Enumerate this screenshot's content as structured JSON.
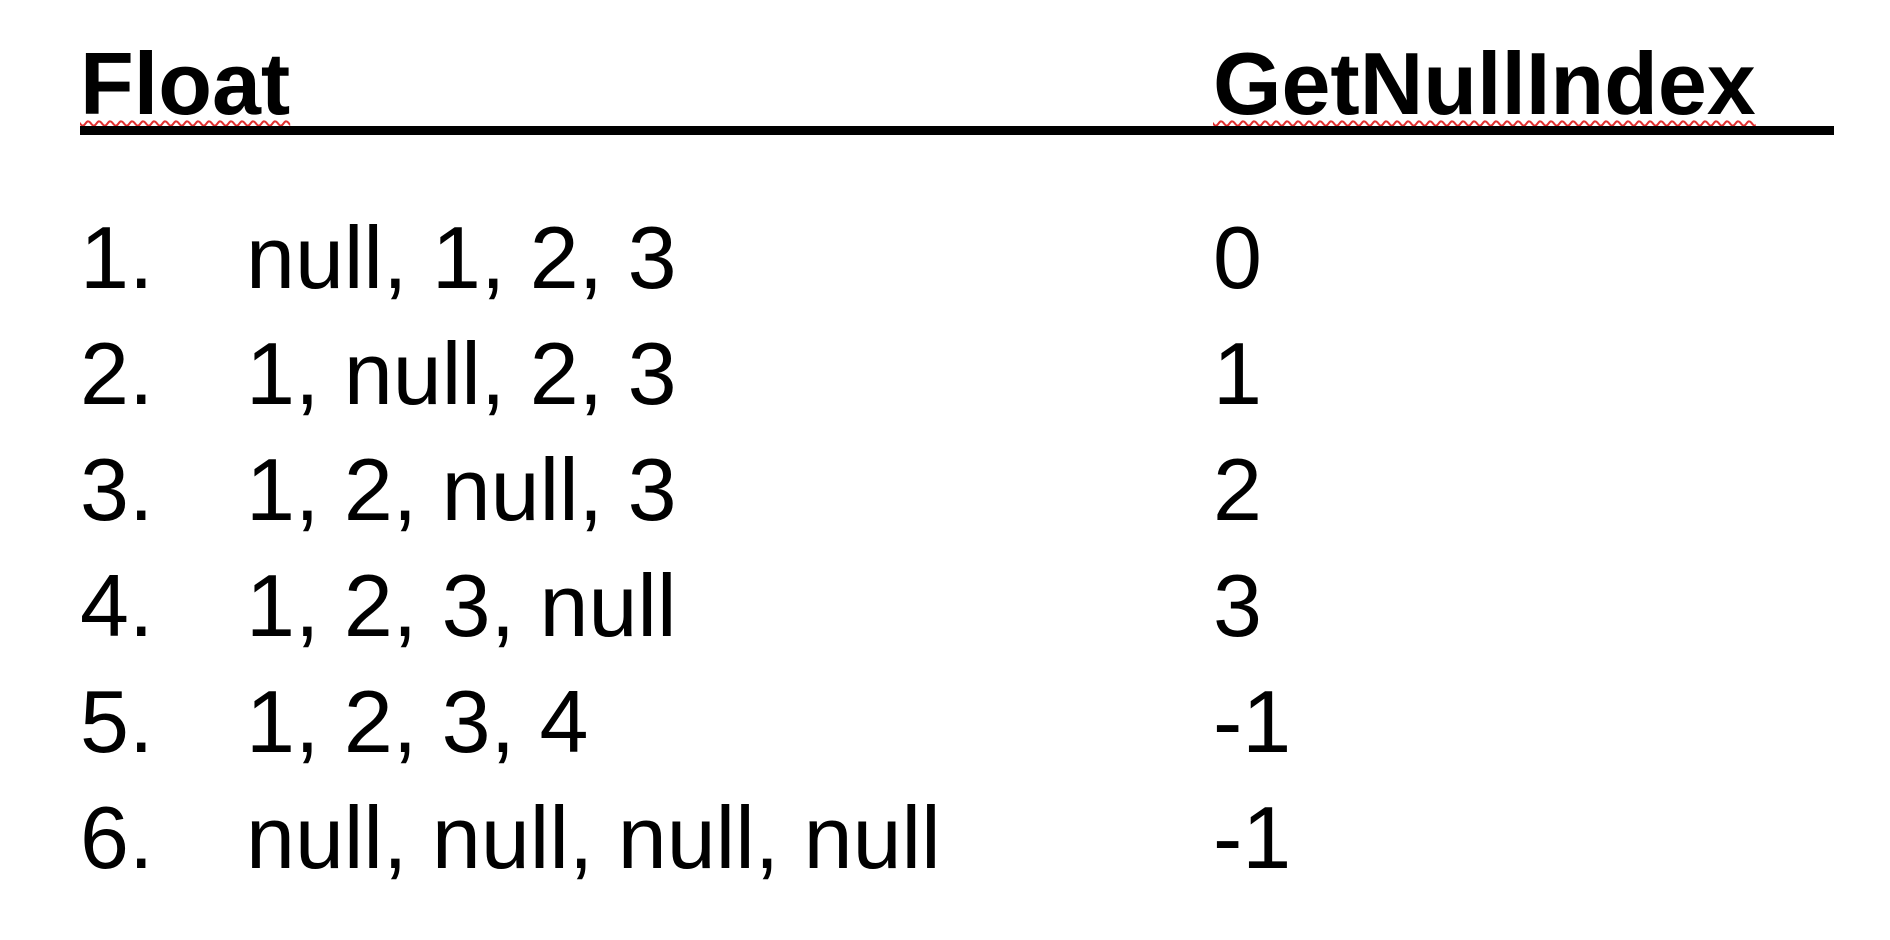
{
  "table": {
    "headers": {
      "float": "Float",
      "null_index": "GetNullIndex"
    },
    "rows": [
      {
        "number": "1.",
        "values": "null, 1, 2, 3",
        "result": "0"
      },
      {
        "number": "2.",
        "values": "1, null, 2, 3",
        "result": "1"
      },
      {
        "number": "3.",
        "values": "1, 2, null, 3",
        "result": "2"
      },
      {
        "number": "4.",
        "values": "1, 2, 3, null",
        "result": "3"
      },
      {
        "number": "5.",
        "values": "1, 2, 3, 4",
        "result": "-1"
      },
      {
        "number": "6.",
        "values": "null, null, null, null",
        "result": "-1"
      }
    ]
  },
  "colors": {
    "text": "#000000",
    "spellcheck_underline": "#e03030",
    "background": "#ffffff"
  }
}
